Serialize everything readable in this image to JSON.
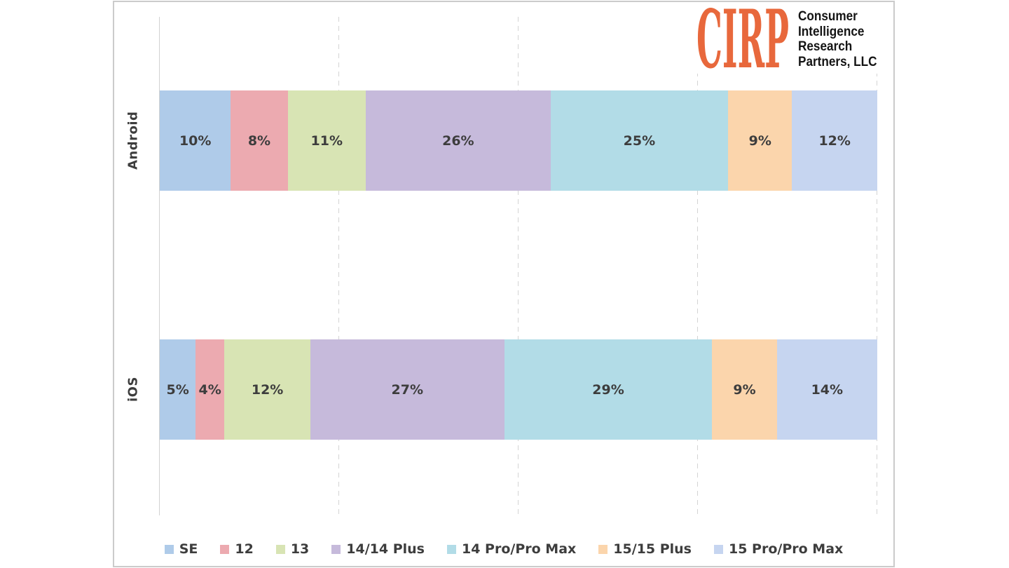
{
  "logo": {
    "acronym": "CIRP",
    "name_lines": [
      "Consumer",
      "Intelligence",
      "Research",
      "Partners, LLC"
    ],
    "accent_color": "#e8683c"
  },
  "chart_data": {
    "type": "bar",
    "orientation": "horizontal",
    "stacked": true,
    "grid": "dashed-vertical",
    "legend_position": "bottom",
    "xlim": [
      0,
      100
    ],
    "gridlines_percent": [
      25,
      50,
      75,
      100
    ],
    "value_suffix": "%",
    "categories": [
      "Android",
      "iOS"
    ],
    "series": [
      {
        "name": "SE",
        "color": "#afcbe9",
        "values": [
          10,
          5
        ]
      },
      {
        "name": "12",
        "color": "#ecaab0",
        "values": [
          8,
          4
        ]
      },
      {
        "name": "13",
        "color": "#d8e4b4",
        "values": [
          11,
          12
        ]
      },
      {
        "name": "14/14 Plus",
        "color": "#c6badb",
        "values": [
          26,
          27
        ]
      },
      {
        "name": "14 Pro/Pro Max",
        "color": "#b2dce7",
        "values": [
          25,
          29
        ]
      },
      {
        "name": "15/15 Plus",
        "color": "#fbd5ac",
        "values": [
          9,
          9
        ]
      },
      {
        "name": "15 Pro/Pro Max",
        "color": "#c6d5f0",
        "values": [
          12,
          14
        ]
      }
    ],
    "label_color": "#3d3d3d"
  }
}
